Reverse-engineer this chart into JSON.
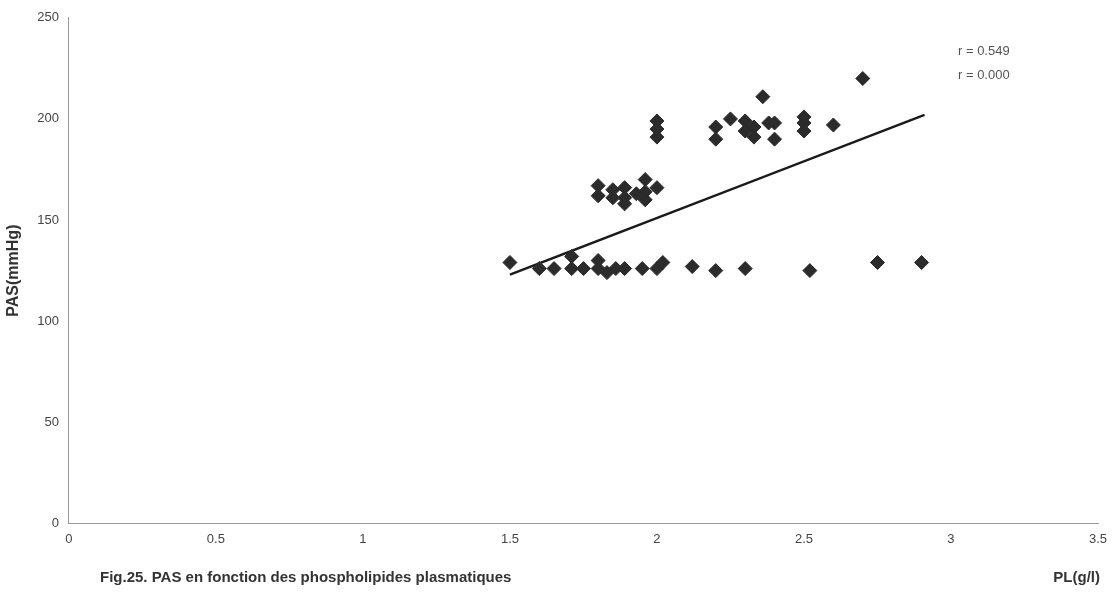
{
  "chart_data": {
    "type": "scatter",
    "title": "Fig.25. PAS en fonction des phospholipides plasmatiques",
    "xlabel": "PL(g/l)",
    "ylabel": "PAS(mmHg)",
    "xlim": [
      0,
      3.5
    ],
    "xticks": [
      0,
      0.5,
      1,
      1.5,
      2,
      2.5,
      3,
      3.5
    ],
    "ylim": [
      0,
      250
    ],
    "yticks": [
      0,
      50,
      100,
      150,
      200,
      250
    ],
    "grid": false,
    "legend": false,
    "marker": "diamond",
    "annotations": [
      "r = 0.549",
      "r = 0.000"
    ],
    "series": [
      {
        "color": "#2b2b2b",
        "x": [
          1.5,
          1.6,
          1.65,
          1.71,
          1.71,
          1.75,
          1.8,
          1.8,
          1.83,
          1.86,
          1.89,
          1.95,
          2.0,
          2.02,
          2.12,
          2.2,
          2.3,
          2.52,
          2.75,
          2.9,
          1.8,
          1.8,
          1.85,
          1.85,
          1.89,
          1.89,
          1.89,
          1.93,
          1.96,
          1.96,
          1.96,
          2.0,
          2.0,
          2.0,
          2.0,
          2.2,
          2.2,
          2.25,
          2.3,
          2.3,
          2.33,
          2.33,
          2.36,
          2.38,
          2.4,
          2.4,
          2.5,
          2.5,
          2.5,
          2.6,
          2.7
        ],
        "values": [
          129,
          126,
          126,
          132,
          126,
          126,
          130,
          126,
          124,
          126,
          126,
          126,
          126,
          129,
          127,
          125,
          126,
          125,
          129,
          129,
          167,
          162,
          165,
          161,
          166,
          161,
          158,
          163,
          170,
          164,
          160,
          166,
          199,
          195,
          191,
          196,
          190,
          200,
          199,
          194,
          196,
          191,
          211,
          198,
          198,
          190,
          201,
          198,
          194,
          197,
          220
        ]
      },
      {
        "type": "line",
        "color": "#1a1a1a",
        "x": [
          1.5,
          2.91
        ],
        "values": [
          123,
          202
        ],
        "marker": "none"
      }
    ]
  }
}
